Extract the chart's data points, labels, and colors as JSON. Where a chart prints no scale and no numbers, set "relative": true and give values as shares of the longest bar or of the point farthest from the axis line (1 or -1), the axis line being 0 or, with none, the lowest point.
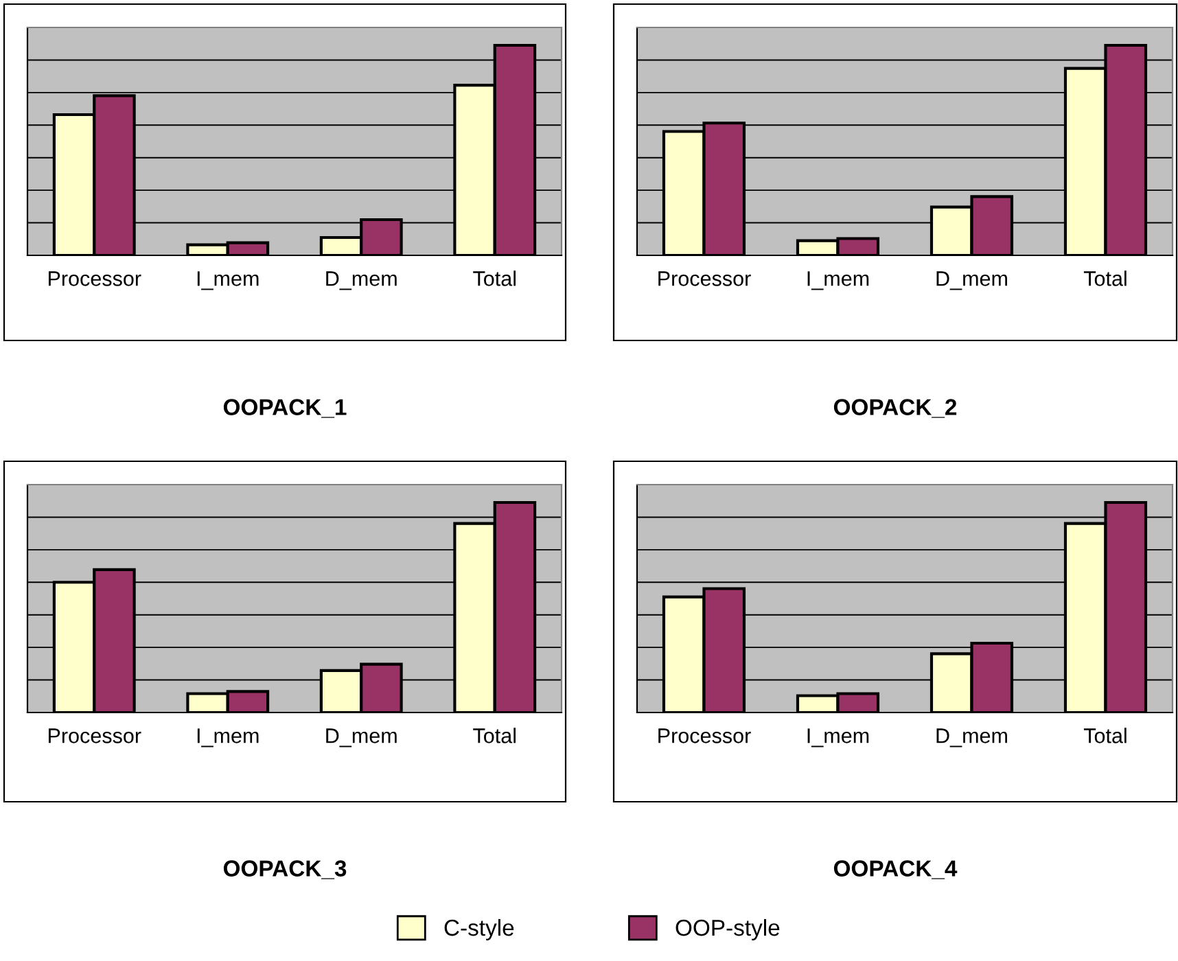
{
  "chart_data": [
    {
      "type": "bar",
      "title": "OOPACK_1",
      "categories": [
        "Processor",
        "I_mem",
        "D_mem",
        "Total"
      ],
      "relative": true,
      "grid": "y",
      "tick_labels": "x",
      "legend": "bottom",
      "series": [
        {
          "name": "C-style",
          "color": "#ffffcc",
          "values": [
            0.67,
            0.05,
            0.085,
            0.81
          ]
        },
        {
          "name": "OOP-style",
          "color": "#993366",
          "values": [
            0.76,
            0.06,
            0.17,
            1
          ]
        }
      ]
    },
    {
      "type": "bar",
      "title": "OOPACK_2",
      "categories": [
        "Processor",
        "I_mem",
        "D_mem",
        "Total"
      ],
      "relative": true,
      "grid": "y",
      "tick_labels": "x",
      "series": [
        {
          "color": "#ffffcc",
          "values": [
            0.59,
            0.07,
            0.23,
            0.89
          ]
        },
        {
          "color": "#993366",
          "values": [
            0.63,
            0.08,
            0.28,
            1
          ]
        }
      ]
    },
    {
      "type": "bar",
      "title": "OOPACK_3",
      "categories": [
        "Processor",
        "I_mem",
        "D_mem",
        "Total"
      ],
      "relative": true,
      "grid": "y",
      "tick_labels": "x",
      "series": [
        {
          "color": "#ffffcc",
          "values": [
            0.62,
            0.09,
            0.2,
            0.9
          ]
        },
        {
          "color": "#993366",
          "values": [
            0.68,
            0.1,
            0.23,
            1
          ]
        }
      ]
    },
    {
      "type": "bar",
      "title": "OOPACK_4",
      "categories": [
        "Processor",
        "I_mem",
        "D_mem",
        "Total"
      ],
      "relative": true,
      "grid": "y",
      "tick_labels": "x",
      "series": [
        {
          "color": "#ffffcc",
          "values": [
            0.55,
            0.08,
            0.28,
            0.9
          ]
        },
        {
          "color": "#993366",
          "values": [
            0.59,
            0.09,
            0.33,
            1
          ]
        }
      ]
    }
  ]
}
